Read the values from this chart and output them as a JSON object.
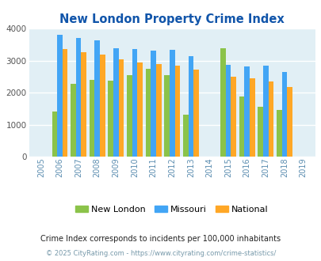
{
  "title": "New London Property Crime Index",
  "years": [
    2005,
    2006,
    2007,
    2008,
    2009,
    2010,
    2011,
    2012,
    2013,
    2014,
    2015,
    2016,
    2017,
    2018,
    2019
  ],
  "new_london": [
    null,
    1400,
    2270,
    2410,
    2380,
    2560,
    2750,
    2540,
    1320,
    null,
    3380,
    1880,
    1560,
    1460,
    null
  ],
  "missouri": [
    null,
    3820,
    3710,
    3640,
    3400,
    3360,
    3320,
    3330,
    3140,
    null,
    2860,
    2810,
    2840,
    2640,
    null
  ],
  "national": [
    null,
    3360,
    3270,
    3200,
    3040,
    2940,
    2900,
    2840,
    2720,
    null,
    2490,
    2440,
    2360,
    2170,
    null
  ],
  "new_london_color": "#8BC34A",
  "missouri_color": "#42A5F5",
  "national_color": "#FFA726",
  "bg_color": "#E1EFF5",
  "ylim": [
    0,
    4000
  ],
  "ylabel_step": 1000,
  "footnote1": "Crime Index corresponds to incidents per 100,000 inhabitants",
  "footnote2": "© 2025 CityRating.com - https://www.cityrating.com/crime-statistics/",
  "legend_labels": [
    "New London",
    "Missouri",
    "National"
  ]
}
